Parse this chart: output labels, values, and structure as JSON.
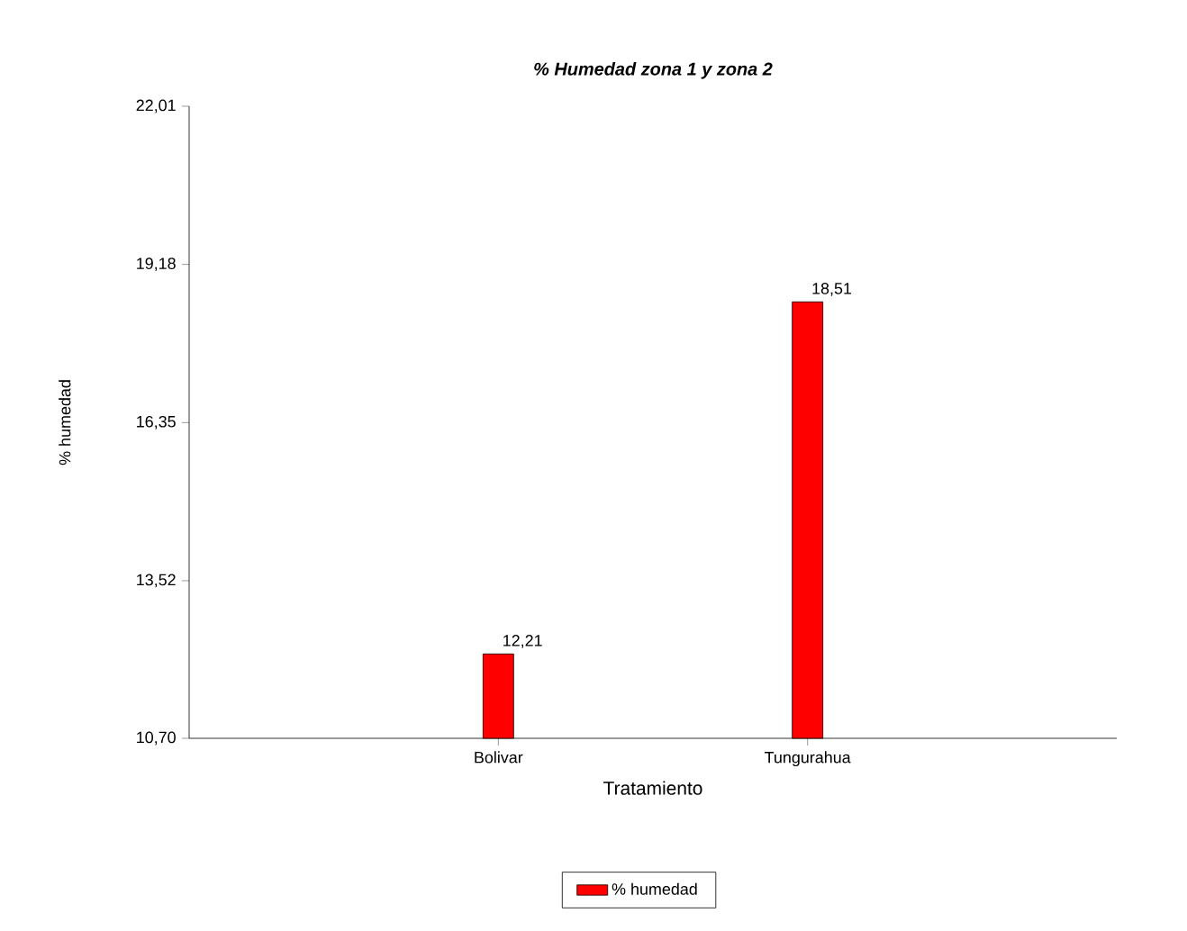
{
  "chart_data": {
    "type": "bar",
    "title": "% Humedad zona 1 y zona 2",
    "xlabel": "Tratamiento",
    "ylabel": "% humedad",
    "categories": [
      "Bolivar",
      "Tungurahua"
    ],
    "series": [
      {
        "name": "% humedad",
        "color": "#ff0000",
        "values": [
          12.21,
          18.51
        ],
        "value_labels": [
          "12,21",
          "18,51"
        ]
      }
    ],
    "ylim": [
      10.7,
      22.01
    ],
    "yticks": [
      {
        "value": 10.7,
        "label": "10,70"
      },
      {
        "value": 13.52,
        "label": "13,52"
      },
      {
        "value": 16.35,
        "label": "16,35"
      },
      {
        "value": 19.18,
        "label": "19,18"
      },
      {
        "value": 22.01,
        "label": "22,01"
      }
    ],
    "legend": "bottom"
  }
}
